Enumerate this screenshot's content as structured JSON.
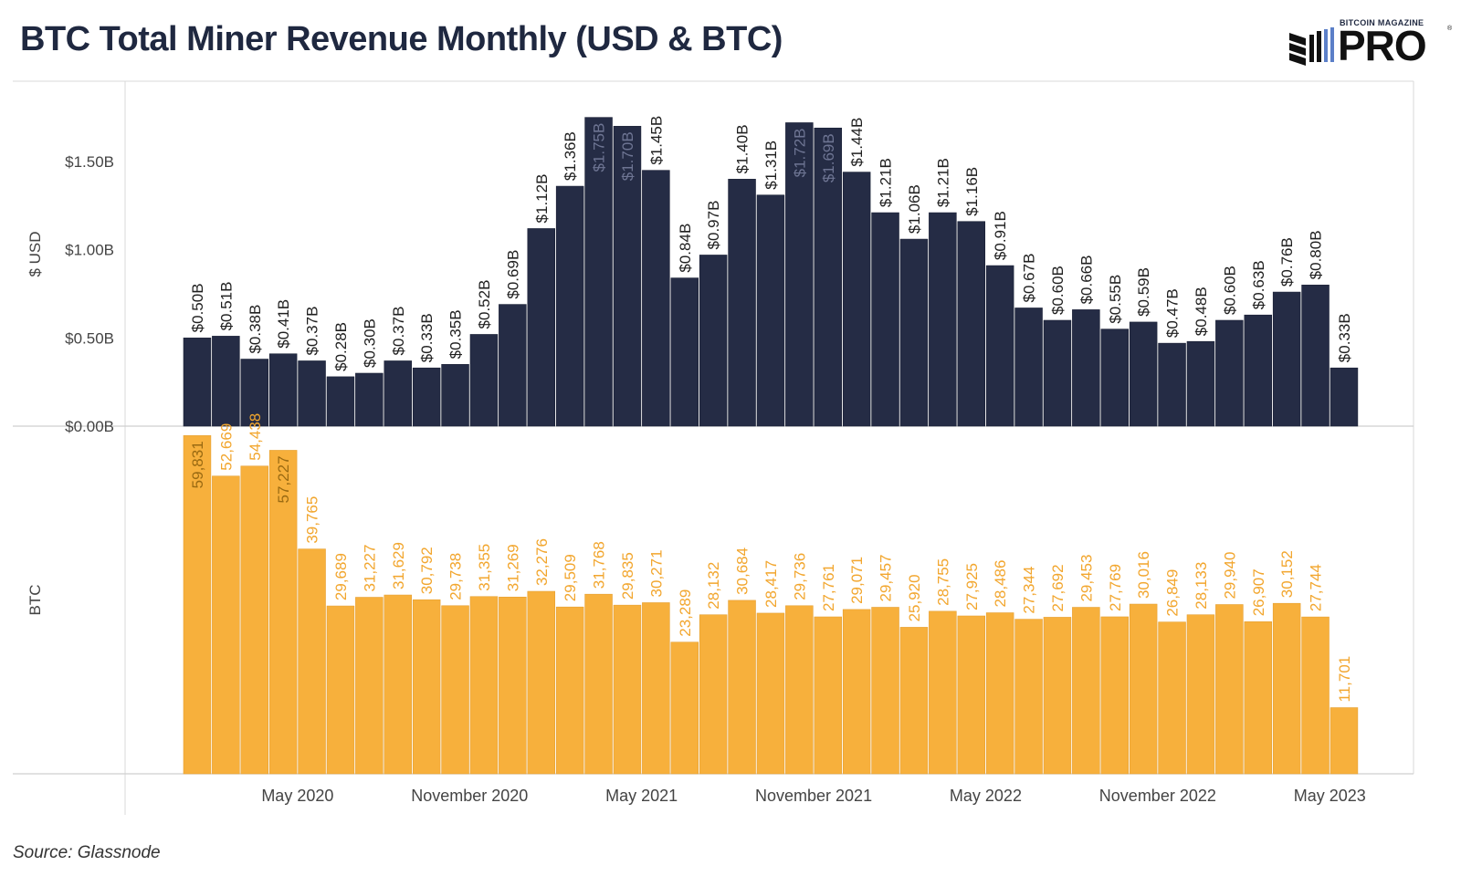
{
  "title": "BTC Total Miner Revenue Monthly (USD & BTC)",
  "logo": {
    "small_text": "BITCOIN MAGAZINE",
    "big_text": "PRO",
    "registered": "®"
  },
  "source": "Source: Glassnode",
  "colors": {
    "usd_bar": "#252c45",
    "btc_bar": "#f7b03c",
    "usd_label": "#1f1f1f",
    "usd_label_inside": "#6e7593",
    "btc_label": "#f2a62e",
    "btc_label_inside": "#9a6a12",
    "axis_text": "#444444",
    "grid": "#d9d9d9"
  },
  "chart_data": [
    {
      "type": "bar",
      "panel": "usd",
      "ylabel": "$ USD",
      "yticks": [
        "$0.00B",
        "$0.50B",
        "$1.00B",
        "$1.50B"
      ],
      "ytick_values": [
        0,
        0.5,
        1.0,
        1.5
      ],
      "ylim": [
        0,
        1.95
      ],
      "values": [
        0.5,
        0.51,
        0.38,
        0.41,
        0.37,
        0.28,
        0.3,
        0.37,
        0.33,
        0.35,
        0.52,
        0.69,
        1.12,
        1.36,
        1.75,
        1.7,
        1.45,
        0.84,
        0.97,
        1.4,
        1.31,
        1.72,
        1.69,
        1.44,
        1.21,
        1.06,
        1.21,
        1.16,
        0.91,
        0.67,
        0.6,
        0.66,
        0.55,
        0.59,
        0.47,
        0.48,
        0.6,
        0.63,
        0.76,
        0.8,
        0.33
      ],
      "labels": [
        "$0.50B",
        "$0.51B",
        "$0.38B",
        "$0.41B",
        "$0.37B",
        "$0.28B",
        "$0.30B",
        "$0.37B",
        "$0.33B",
        "$0.35B",
        "$0.52B",
        "$0.69B",
        "$1.12B",
        "$1.36B",
        "$1.75B",
        "$1.70B",
        "$1.45B",
        "$0.84B",
        "$0.97B",
        "$1.40B",
        "$1.31B",
        "$1.72B",
        "$1.69B",
        "$1.44B",
        "$1.21B",
        "$1.06B",
        "$1.21B",
        "$1.16B",
        "$0.91B",
        "$0.67B",
        "$0.60B",
        "$0.66B",
        "$0.55B",
        "$0.59B",
        "$0.47B",
        "$0.48B",
        "$0.60B",
        "$0.63B",
        "$0.76B",
        "$0.80B",
        "$0.33B"
      ],
      "labels_inside_bar": [
        14,
        15,
        21,
        22
      ]
    },
    {
      "type": "bar",
      "panel": "btc",
      "ylabel": "BTC",
      "ylim": [
        0,
        61500
      ],
      "values": [
        59831,
        52669,
        54438,
        57227,
        39765,
        29689,
        31227,
        31629,
        30792,
        29738,
        31355,
        31269,
        32276,
        29509,
        31768,
        29835,
        30271,
        23289,
        28132,
        30684,
        28417,
        29736,
        27761,
        29071,
        29457,
        25920,
        28755,
        27925,
        28486,
        27344,
        27692,
        29453,
        27769,
        30016,
        26849,
        28133,
        29940,
        26907,
        30152,
        27744,
        11701
      ],
      "labels": [
        "59,831",
        "52,669",
        "54,438",
        "57,227",
        "39,765",
        "29,689",
        "31,227",
        "31,629",
        "30,792",
        "29,738",
        "31,355",
        "31,269",
        "32,276",
        "29,509",
        "31,768",
        "29,835",
        "30,271",
        "23,289",
        "28,132",
        "30,684",
        "28,417",
        "29,736",
        "27,761",
        "29,071",
        "29,457",
        "25,920",
        "28,755",
        "27,925",
        "28,486",
        "27,344",
        "27,692",
        "29,453",
        "27,769",
        "30,016",
        "26,849",
        "28,133",
        "29,940",
        "26,907",
        "30,152",
        "27,744",
        "11,701"
      ],
      "labels_inside_bar": [
        0,
        3
      ]
    }
  ],
  "x_axis": {
    "ticks": [
      "May 2020",
      "November 2020",
      "May 2021",
      "November 2021",
      "May 2022",
      "November 2022",
      "May 2023"
    ],
    "tick_bar_index": [
      3.5,
      9.5,
      15.5,
      21.5,
      27.5,
      33.5,
      39.5
    ]
  }
}
